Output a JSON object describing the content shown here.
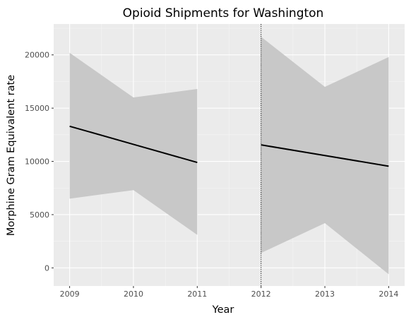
{
  "chart_data": {
    "type": "line",
    "title": "Opioid Shipments for Washington",
    "xlabel": "Year",
    "ylabel": "Morphine Gram Equivalent rate",
    "x_ticks": [
      "2009",
      "2010",
      "2011",
      "2012",
      "2013",
      "2014"
    ],
    "y_ticks": [
      "0",
      "5000",
      "10000",
      "15000",
      "20000"
    ],
    "xlim": [
      2008.75,
      2014.25
    ],
    "ylim": [
      -1700,
      22900
    ],
    "grid": true,
    "legend": "none",
    "vertical_line": {
      "x": 2012,
      "style": "dotted"
    },
    "series": [
      {
        "segment": "pre",
        "x": [
          2009,
          2010,
          2011
        ],
        "fit": [
          13300,
          11600,
          9900
        ],
        "band_lower": [
          6500,
          7300,
          3100
        ],
        "band_upper": [
          20200,
          16000,
          16800
        ]
      },
      {
        "segment": "post",
        "x": [
          2012,
          2013,
          2014
        ],
        "fit": [
          11550,
          10550,
          9550
        ],
        "band_lower": [
          1400,
          4200,
          -600
        ],
        "band_upper": [
          21700,
          17000,
          19800
        ]
      }
    ],
    "colors": {
      "panel": "#ebebeb",
      "grid_major": "#ffffff",
      "grid_minor": "#f5f5f5",
      "band": "#c8c8c8",
      "line": "#000000"
    }
  }
}
